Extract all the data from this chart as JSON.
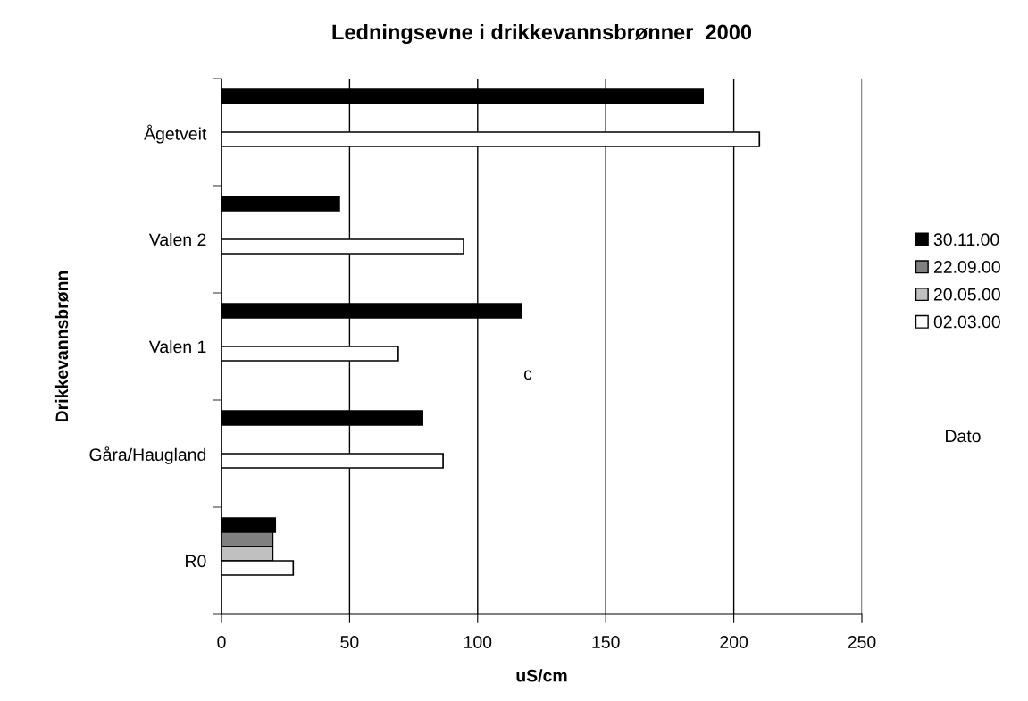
{
  "chart_data": {
    "type": "bar",
    "orientation": "horizontal",
    "title": "Ledningsevne i drikkevannsbrønner  2000",
    "xlabel": "uS/cm",
    "ylabel": "Drikkevannsbrønn",
    "legend_title": "Dato",
    "categories": [
      "Ågetveit",
      "Valen 2",
      "Valen 1",
      "Gåra/Haugland",
      "R0"
    ],
    "series": [
      {
        "name": "30.11.00",
        "color": "#000000",
        "values": [
          188,
          46,
          117,
          78.5,
          21
        ]
      },
      {
        "name": "22.09.00",
        "color": "#808080",
        "values": [
          null,
          null,
          null,
          null,
          20
        ]
      },
      {
        "name": "20.05.00",
        "color": "#c0c0c0",
        "values": [
          null,
          null,
          null,
          null,
          20
        ]
      },
      {
        "name": "02.03.00",
        "color": "#ffffff",
        "values": [
          210,
          94.5,
          69,
          86.5,
          28
        ]
      }
    ],
    "xlim": [
      0,
      250
    ],
    "xticks": [
      0,
      50,
      100,
      150,
      200,
      250
    ],
    "grid": "x",
    "legend": "right",
    "annotations": [
      "c"
    ]
  }
}
